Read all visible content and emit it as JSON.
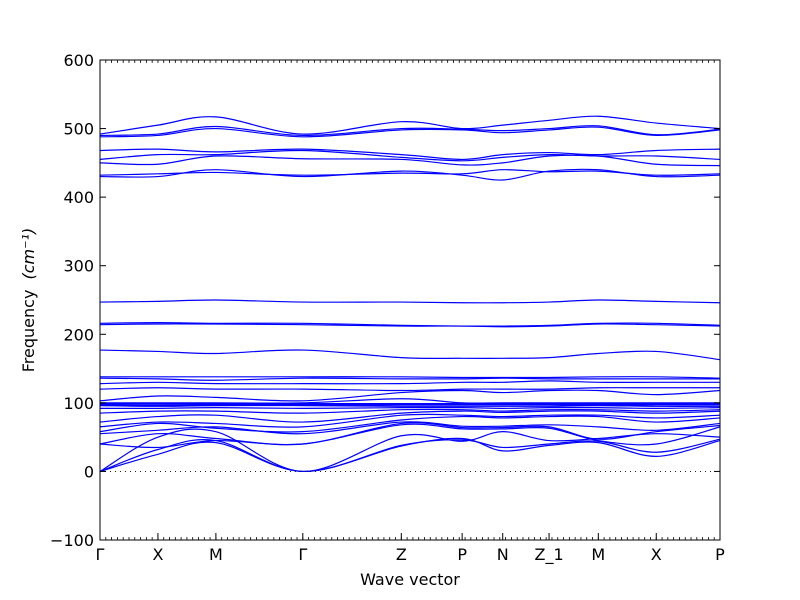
{
  "chart_data": {
    "type": "line",
    "xlabel": "Wave vector",
    "ylabel": "Frequency",
    "ylabel_unit": "(cm⁻¹)",
    "ylim": [
      -100,
      600
    ],
    "yticks": [
      -100,
      0,
      100,
      200,
      300,
      400,
      500,
      600
    ],
    "x_points": [
      {
        "label": "Γ",
        "x": 0.0
      },
      {
        "label": "X",
        "x": 1.0
      },
      {
        "label": "M",
        "x": 2.0
      },
      {
        "label": "Γ",
        "x": 3.5
      },
      {
        "label": "Z",
        "x": 5.2
      },
      {
        "label": "P",
        "x": 6.25
      },
      {
        "label": "N",
        "x": 6.95
      },
      {
        "label": "Z_1",
        "x": 7.75
      },
      {
        "label": "M",
        "x": 8.6
      },
      {
        "label": "X",
        "x": 9.6
      },
      {
        "label": "P",
        "x": 10.7
      }
    ],
    "xlim": [
      0,
      10.7
    ],
    "zero_line": true,
    "grid": false,
    "series_color": "#0000ff",
    "series": [
      {
        "values": [
          0,
          25,
          42,
          0,
          37,
          48,
          30,
          38,
          42,
          22,
          45
        ]
      },
      {
        "values": [
          0,
          32,
          45,
          0,
          38,
          46,
          35,
          40,
          44,
          28,
          47
        ]
      },
      {
        "values": [
          0,
          50,
          58,
          0,
          52,
          44,
          58,
          45,
          48,
          55,
          50
        ]
      },
      {
        "values": [
          40,
          35,
          45,
          40,
          68,
          62,
          62,
          63,
          45,
          40,
          65
        ]
      },
      {
        "values": [
          40,
          55,
          48,
          40,
          70,
          64,
          64,
          65,
          47,
          58,
          67
        ]
      },
      {
        "values": [
          55,
          60,
          65,
          55,
          72,
          66,
          66,
          68,
          65,
          60,
          70
        ]
      },
      {
        "values": [
          58,
          70,
          63,
          58,
          75,
          80,
          78,
          80,
          80,
          72,
          78
        ]
      },
      {
        "values": [
          65,
          72,
          70,
          65,
          82,
          82,
          80,
          82,
          82,
          78,
          82
        ]
      },
      {
        "values": [
          72,
          80,
          82,
          72,
          85,
          88,
          86,
          88,
          88,
          85,
          88
        ]
      },
      {
        "values": [
          85,
          88,
          88,
          85,
          90,
          90,
          88,
          90,
          90,
          88,
          90
        ]
      },
      {
        "values": [
          92,
          92,
          93,
          92,
          93,
          93,
          92,
          93,
          93,
          92,
          93
        ]
      },
      {
        "values": [
          96,
          95,
          96,
          96,
          95,
          95,
          95,
          95,
          96,
          95,
          95
        ]
      },
      {
        "values": [
          97,
          96,
          97,
          97,
          97,
          97,
          97,
          97,
          97,
          97,
          97
        ]
      },
      {
        "values": [
          98,
          98,
          98,
          98,
          98,
          98,
          98,
          98,
          98,
          98,
          98
        ]
      },
      {
        "values": [
          99,
          99,
          99,
          99,
          99,
          99,
          99,
          99,
          99,
          99,
          99
        ]
      },
      {
        "values": [
          100,
          100,
          100,
          100,
          106,
          100,
          100,
          100,
          100,
          100,
          100
        ]
      },
      {
        "values": [
          103,
          110,
          108,
          103,
          115,
          118,
          115,
          118,
          118,
          112,
          118
        ]
      },
      {
        "values": [
          120,
          122,
          120,
          120,
          118,
          120,
          120,
          120,
          122,
          122,
          122
        ]
      },
      {
        "values": [
          128,
          130,
          128,
          128,
          128,
          130,
          130,
          132,
          130,
          130,
          130
        ]
      },
      {
        "values": [
          136,
          135,
          133,
          136,
          135,
          135,
          136,
          135,
          135,
          135,
          135
        ]
      },
      {
        "values": [
          138,
          138,
          138,
          138,
          138,
          137,
          137,
          137,
          138,
          138,
          136
        ]
      },
      {
        "values": [
          177,
          175,
          172,
          177,
          166,
          165,
          165,
          166,
          172,
          175,
          163
        ]
      },
      {
        "values": [
          214,
          215,
          215,
          214,
          212,
          212,
          211,
          212,
          215,
          214,
          212
        ]
      },
      {
        "values": [
          216,
          217,
          216,
          216,
          213,
          212,
          212,
          213,
          216,
          216,
          213
        ]
      },
      {
        "values": [
          247,
          248,
          250,
          247,
          247,
          246,
          246,
          247,
          250,
          248,
          246
        ]
      },
      {
        "values": [
          430,
          430,
          440,
          430,
          438,
          432,
          425,
          438,
          440,
          430,
          432
        ]
      },
      {
        "values": [
          432,
          434,
          436,
          432,
          435,
          434,
          440,
          437,
          438,
          432,
          434
        ]
      },
      {
        "values": [
          450,
          448,
          460,
          456,
          455,
          447,
          450,
          460,
          460,
          448,
          446
        ]
      },
      {
        "values": [
          455,
          462,
          462,
          468,
          458,
          453,
          458,
          462,
          460,
          460,
          455
        ]
      },
      {
        "values": [
          468,
          470,
          466,
          470,
          462,
          455,
          462,
          465,
          462,
          468,
          470
        ]
      },
      {
        "values": [
          488,
          490,
          500,
          488,
          498,
          498,
          494,
          498,
          502,
          490,
          498
        ]
      },
      {
        "values": [
          490,
          492,
          503,
          490,
          500,
          499,
          497,
          500,
          504,
          491,
          499
        ]
      },
      {
        "values": [
          492,
          505,
          517,
          492,
          510,
          500,
          505,
          512,
          518,
          508,
          500
        ]
      }
    ]
  }
}
